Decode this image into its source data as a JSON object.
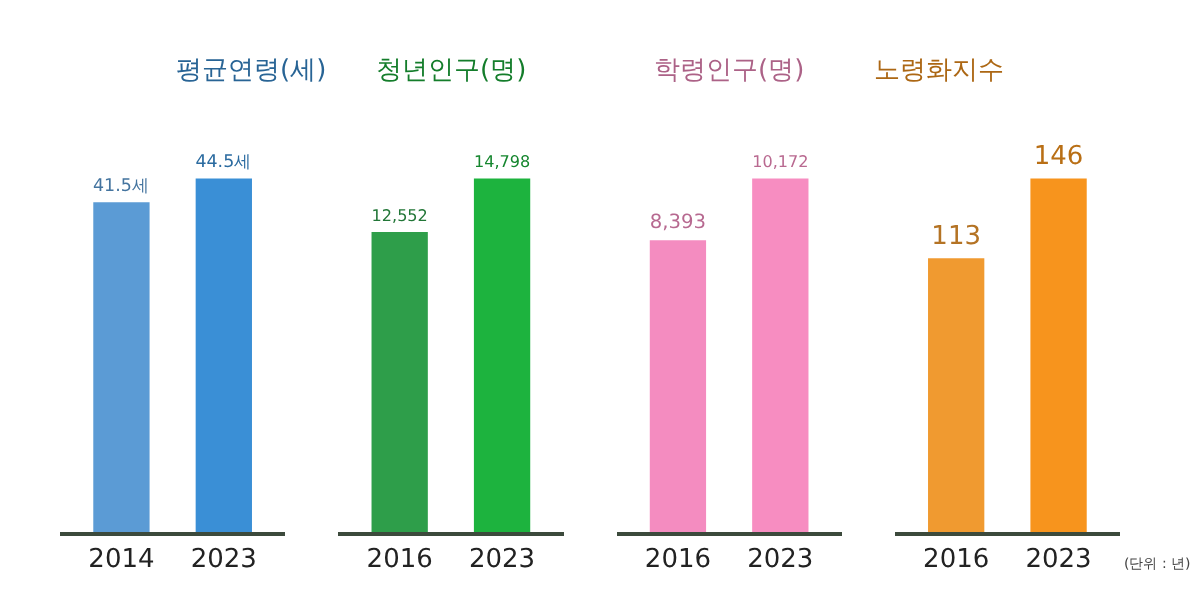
{
  "chart_data": [
    {
      "type": "bar",
      "title": "평균연령(세)",
      "categories": [
        "2014",
        "2023"
      ],
      "values": [
        41.5,
        44.5
      ],
      "colors": [
        "#5b9bd5",
        "#3a8fd6"
      ],
      "value_labels": [
        "41.5세",
        "44.5세"
      ]
    },
    {
      "type": "bar",
      "title": "청년인구(명)",
      "categories": [
        "2016",
        "2023"
      ],
      "values": [
        12552,
        14798
      ],
      "colors": [
        "#2e9e4a",
        "#1db33e"
      ],
      "value_labels": [
        "12,552",
        "14,798"
      ]
    },
    {
      "type": "bar",
      "title": "학령인구(명)",
      "categories": [
        "2016",
        "2023"
      ],
      "values": [
        8393,
        10172
      ],
      "colors": [
        "#f48cc0",
        "#f78dc1"
      ],
      "value_labels": [
        "8,393",
        "10,172"
      ]
    },
    {
      "type": "bar",
      "title": "노령화지수",
      "categories": [
        "2016",
        "2023"
      ],
      "values": [
        113,
        146
      ],
      "colors": [
        "#f09a30",
        "#f7941d"
      ],
      "value_labels": [
        "113",
        "146"
      ],
      "annotations": [
        "(단위 : 년)"
      ]
    }
  ]
}
